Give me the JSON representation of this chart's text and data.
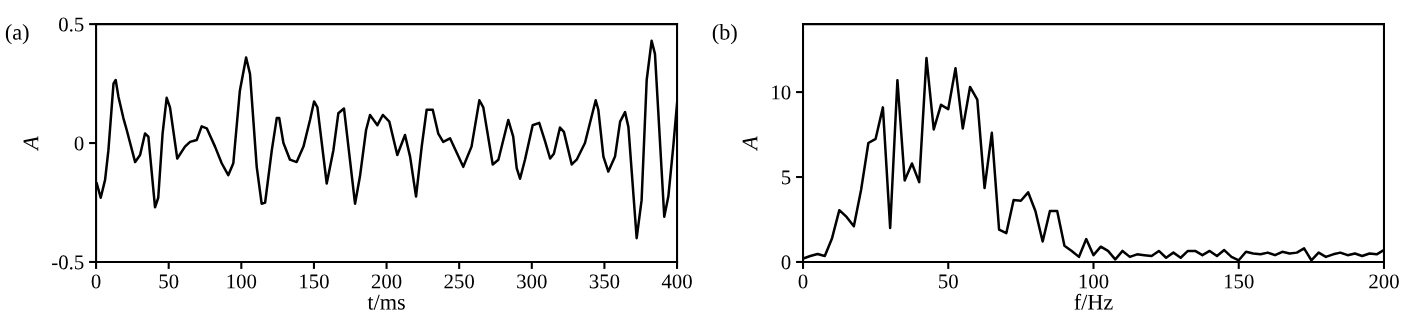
{
  "chart_data": [
    {
      "type": "line",
      "title": "(a)",
      "xlabel": "t/ms",
      "ylabel": "A",
      "xlim": [
        0,
        400
      ],
      "xticks": [
        0,
        50,
        100,
        150,
        200,
        250,
        300,
        350,
        400
      ],
      "ylim": [
        -0.5,
        0.5
      ],
      "yticks": [
        {
          "value": -0.5,
          "label": "-0.5"
        },
        0,
        0.5
      ],
      "series": [
        {
          "color": "#000000",
          "x": [
            0.5,
            3.2,
            6.2,
            8.5,
            12,
            13.5,
            15.4,
            18.8,
            21.1,
            26.9,
            30.3,
            33.7,
            36,
            40.6,
            42.8,
            45.8,
            48.6,
            50.9,
            55.9,
            61.2,
            64.7,
            69.3,
            72.7,
            76.2,
            81.9,
            86.5,
            91,
            94.5,
            99,
            103.3,
            106,
            110.6,
            114,
            116.4,
            121,
            124.4,
            126.1,
            129,
            133.5,
            138.1,
            142.8,
            147.3,
            150.1,
            152.4,
            158.8,
            163.4,
            166.8,
            170.7,
            178.3,
            181.7,
            185.9,
            188.6,
            193.7,
            197.4,
            201.9,
            207.4,
            212.7,
            216.2,
            220.3,
            224.2,
            227.6,
            231.8,
            235.6,
            239,
            243.7,
            252.8,
            258.5,
            263.9,
            266.6,
            273.1,
            277,
            283.8,
            287.2,
            289.6,
            291.9,
            295.3,
            300.6,
            305.1,
            309,
            312.6,
            315.2,
            319.4,
            322.1,
            327.5,
            330.9,
            336.6,
            340,
            344,
            345.8,
            349.3,
            352.7,
            357.3,
            360.8,
            364.2,
            366.5,
            372.2,
            375.6,
            379.1,
            382.5,
            384.8,
            391.2,
            394,
            397.4,
            400
          ],
          "values": [
            -0.17,
            -0.23,
            -0.155,
            -0.03,
            0.25,
            0.265,
            0.195,
            0.105,
            0.055,
            -0.08,
            -0.05,
            0.04,
            0.027,
            -0.27,
            -0.23,
            0.04,
            0.19,
            0.15,
            -0.065,
            -0.015,
            0.005,
            0.013,
            0.07,
            0.062,
            -0.015,
            -0.085,
            -0.135,
            -0.085,
            0.22,
            0.36,
            0.29,
            -0.1,
            -0.255,
            -0.25,
            -0.03,
            0.105,
            0.105,
            0,
            -0.07,
            -0.08,
            -0.015,
            0.097,
            0.175,
            0.15,
            -0.17,
            -0.03,
            0.125,
            0.145,
            -0.255,
            -0.14,
            0.055,
            0.118,
            0.075,
            0.118,
            0.09,
            -0.05,
            0.034,
            -0.057,
            -0.225,
            -0.015,
            0.14,
            0.14,
            0.04,
            0.005,
            0.02,
            -0.1,
            -0.015,
            0.18,
            0.15,
            -0.09,
            -0.07,
            0.097,
            0.027,
            -0.105,
            -0.15,
            -0.07,
            0.075,
            0.085,
            0.01,
            -0.065,
            -0.045,
            0.065,
            0.047,
            -0.09,
            -0.07,
            0,
            0.083,
            0.18,
            0.14,
            -0.057,
            -0.12,
            -0.057,
            0.09,
            0.13,
            0.068,
            -0.4,
            -0.24,
            0.265,
            0.43,
            0.375,
            -0.31,
            -0.225,
            -0.015,
            0.167
          ]
        }
      ]
    },
    {
      "type": "line",
      "title": "(b)",
      "xlabel": "f/Hz",
      "ylabel": "A",
      "xlim": [
        0,
        200
      ],
      "xticks": [
        0,
        50,
        100,
        150,
        200
      ],
      "ylim": [
        0,
        14
      ],
      "yticks": [
        0,
        5,
        10
      ],
      "series": [
        {
          "color": "#000000",
          "x": [
            0,
            2.5,
            5,
            7.5,
            10,
            12.5,
            15,
            17.5,
            20,
            22.5,
            25,
            27.5,
            30,
            32.5,
            35,
            37.5,
            40,
            42.5,
            45,
            47.5,
            50,
            52.5,
            55,
            57.5,
            60,
            62.5,
            65,
            67.5,
            70,
            72.5,
            75,
            77.5,
            80,
            82.5,
            85,
            87.5,
            90,
            92.5,
            95,
            97.5,
            100,
            102.5,
            105,
            107.5,
            110,
            112.5,
            115,
            117.5,
            120,
            122.5,
            125,
            127.5,
            130,
            132.5,
            135,
            137.5,
            140,
            142.5,
            145,
            147.5,
            150,
            152.5,
            155,
            157.5,
            160,
            162.5,
            165,
            167.5,
            170,
            172.5,
            175,
            177.5,
            180,
            182.5,
            185,
            187.5,
            190,
            192.5,
            195,
            197.5,
            200
          ],
          "values": [
            0.2,
            0.35,
            0.47,
            0.35,
            1.4,
            3.05,
            2.65,
            2.1,
            4.25,
            7.0,
            7.25,
            9.1,
            2.0,
            10.7,
            4.8,
            5.8,
            4.7,
            12.0,
            7.8,
            9.25,
            9.0,
            11.4,
            7.85,
            10.3,
            9.55,
            4.35,
            7.6,
            1.9,
            1.7,
            3.65,
            3.6,
            4.1,
            3.0,
            1.2,
            3.0,
            3.0,
            0.95,
            0.65,
            0.3,
            1.35,
            0.4,
            0.9,
            0.65,
            0.15,
            0.65,
            0.3,
            0.45,
            0.4,
            0.35,
            0.65,
            0.25,
            0.55,
            0.25,
            0.65,
            0.65,
            0.4,
            0.65,
            0.35,
            0.7,
            0.3,
            0.1,
            0.6,
            0.5,
            0.45,
            0.55,
            0.4,
            0.6,
            0.5,
            0.55,
            0.8,
            0.1,
            0.55,
            0.3,
            0.45,
            0.55,
            0.4,
            0.5,
            0.35,
            0.5,
            0.45,
            0.7
          ]
        }
      ]
    }
  ]
}
